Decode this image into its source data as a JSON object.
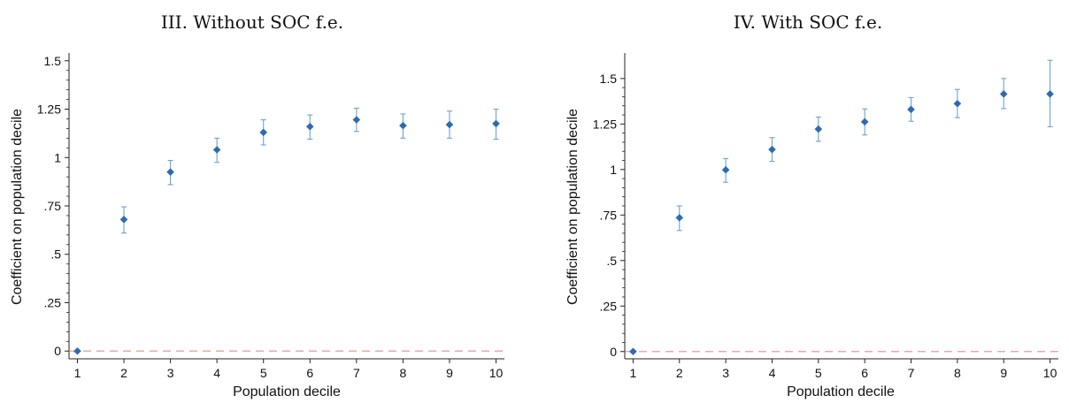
{
  "chart_data": [
    {
      "type": "scatter",
      "title": "III. Without SOC f.e.",
      "xlabel": "Population decile",
      "ylabel": "Coefficient on population decile",
      "x": [
        1,
        2,
        3,
        4,
        5,
        6,
        7,
        8,
        9,
        10
      ],
      "y": [
        0,
        0.68,
        0.925,
        1.04,
        1.13,
        1.16,
        1.195,
        1.165,
        1.17,
        1.175
      ],
      "ci_low": [
        0,
        0.61,
        0.86,
        0.975,
        1.065,
        1.095,
        1.135,
        1.1,
        1.1,
        1.095
      ],
      "ci_high": [
        0,
        0.745,
        0.985,
        1.1,
        1.195,
        1.22,
        1.255,
        1.225,
        1.24,
        1.25
      ],
      "xticks": [
        "1",
        "2",
        "3",
        "4",
        "5",
        "6",
        "7",
        "8",
        "9",
        "10"
      ],
      "yticks": [
        {
          "value": 0,
          "label": "0"
        },
        {
          "value": 0.25,
          "label": ".25"
        },
        {
          "value": 0.5,
          "label": ".5"
        },
        {
          "value": 0.75,
          "label": ".75"
        },
        {
          "value": 1,
          "label": "1"
        },
        {
          "value": 1.25,
          "label": "1.25"
        },
        {
          "value": 1.5,
          "label": "1.5"
        }
      ],
      "xlim": [
        0.82,
        10.18
      ],
      "ylim": [
        -0.04,
        1.54
      ],
      "reference_line": {
        "y": 0,
        "style": "dashed",
        "color": "#f0a8a8"
      },
      "marker_color": "#2b6cb0",
      "errorbar_color": "#6ea3d0",
      "grid": false,
      "legend": "none"
    },
    {
      "type": "scatter",
      "title": "IV. With SOC f.e.",
      "xlabel": "Population decile",
      "ylabel": "Coefficient on population decile",
      "x": [
        1,
        2,
        3,
        4,
        5,
        6,
        7,
        8,
        9,
        10
      ],
      "y": [
        0,
        0.735,
        0.998,
        1.11,
        1.222,
        1.262,
        1.33,
        1.362,
        1.415,
        1.415
      ],
      "ci_low": [
        0,
        0.665,
        0.93,
        1.045,
        1.155,
        1.19,
        1.265,
        1.285,
        1.335,
        1.235
      ],
      "ci_high": [
        0,
        0.8,
        1.06,
        1.175,
        1.288,
        1.333,
        1.395,
        1.44,
        1.5,
        1.6
      ],
      "xticks": [
        "1",
        "2",
        "3",
        "4",
        "5",
        "6",
        "7",
        "8",
        "9",
        "10"
      ],
      "yticks": [
        {
          "value": 0,
          "label": "0"
        },
        {
          "value": 0.25,
          "label": ".25"
        },
        {
          "value": 0.5,
          "label": ".5"
        },
        {
          "value": 0.75,
          "label": ".75"
        },
        {
          "value": 1,
          "label": "1"
        },
        {
          "value": 1.25,
          "label": "1.25"
        },
        {
          "value": 1.5,
          "label": "1.5"
        }
      ],
      "xlim": [
        0.82,
        10.18
      ],
      "ylim": [
        -0.04,
        1.64
      ],
      "reference_line": {
        "y": 0,
        "style": "dashed",
        "color": "#f0a8a8"
      },
      "marker_color": "#2b6cb0",
      "errorbar_color": "#6ea3d0",
      "grid": false,
      "legend": "none"
    }
  ]
}
